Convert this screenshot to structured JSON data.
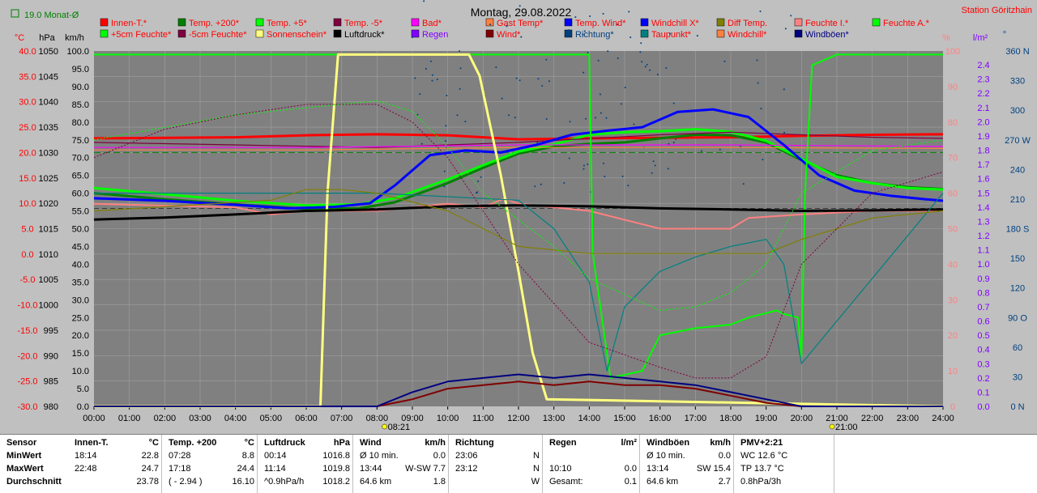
{
  "header": {
    "title": "Montag, 29.08.2022",
    "station": "Station Göritzhain",
    "month_avg": "19.0 Monat-Ø"
  },
  "colors": {
    "bg": "#808080",
    "innen": "#ff0000",
    "temp200": "#008000",
    "temp5": "#00ff00",
    "tempm5": "#800040",
    "bad": "#ff00ff",
    "gast": "#ff8040",
    "wind_temp": "#0000ff",
    "windchill_x": "#0000ff",
    "diff": "#808000",
    "feuchte_i": "#ff8080",
    "feuchte_a": "#00ff00",
    "sonne": "#ffff80",
    "luftdruck": "#000000",
    "regen": "#8000ff",
    "wind": "#800000",
    "richtung": "#004080",
    "taupunkt": "#008080",
    "windboeen": "#000080"
  },
  "legend": [
    [
      "Innen-T.*",
      "Temp. +200*",
      "Temp. +5*",
      "Temp. -5*",
      "Bad*",
      "Gast Temp*",
      "Temp. Wind*",
      "Windchill X*",
      "Diff Temp.",
      "Feuchte I.*",
      "Feuchte A.*"
    ],
    [
      "+5cm Feuchte*",
      "-5cm Feuchte*",
      "Sonnenschein*",
      "Luftdruck*",
      "Regen",
      "Wind*",
      "Richtung*",
      "Taupunkt*",
      "Windchill*",
      "Windböen*"
    ]
  ],
  "axis_titles": {
    "temp": "°C",
    "hpa": "hPa",
    "kmh": "km/h",
    "pct": "%",
    "lm2": "l/m²",
    "deg": "°"
  },
  "chart_data": {
    "type": "line",
    "title": "Montag, 29.08.2022",
    "x_ticks": [
      "00:00",
      "01:00",
      "02:00",
      "03:00",
      "04:00",
      "05:00",
      "06:00",
      "07:00",
      "08:00",
      "09:00",
      "10:00",
      "11:00",
      "12:00",
      "13:00",
      "14:00",
      "15:00",
      "16:00",
      "17:00",
      "18:00",
      "19:00",
      "20:00",
      "21:00",
      "22:00",
      "23:00",
      "24:00"
    ],
    "sunrise": "08:21",
    "sunset": "21:00",
    "temp_ticks": [
      "40.0",
      "35.0",
      "30.0",
      "25.0",
      "20.0",
      "15.0",
      "10.0",
      "5.0",
      "0.0",
      "-5.0",
      "-10.0",
      "-15.0",
      "-20.0",
      "-25.0",
      "-30.0"
    ],
    "hpa_ticks": [
      "1050",
      "1045",
      "1040",
      "1035",
      "1030",
      "1025",
      "1020",
      "1015",
      "1010",
      "1005",
      "1000",
      "995",
      "990",
      "985",
      "980"
    ],
    "kmh_ticks": [
      "100.0",
      "95.0",
      "90.0",
      "85.0",
      "80.0",
      "75.0",
      "70.0",
      "65.0",
      "60.0",
      "55.0",
      "50.0",
      "45.0",
      "40.0",
      "35.0",
      "30.0",
      "25.0",
      "20.0",
      "15.0",
      "10.0",
      "5.0",
      "0.0"
    ],
    "pct_ticks": [
      "100",
      "90",
      "80",
      "70",
      "60",
      "50",
      "40",
      "30",
      "20",
      "10",
      "0"
    ],
    "lm2_ticks": [
      "2.4",
      "2.3",
      "2.2",
      "2.1",
      "2.0",
      "1.9",
      "1.8",
      "1.7",
      "1.6",
      "1.5",
      "1.4",
      "1.3",
      "1.2",
      "1.1",
      "1.0",
      "0.9",
      "0.8",
      "0.7",
      "0.6",
      "0.5",
      "0.4",
      "0.3",
      "0.2",
      "0.1",
      "0.0"
    ],
    "deg_ticks": [
      "360 N",
      "330",
      "300",
      "270 W",
      "240",
      "210",
      "180 S",
      "150",
      "120",
      "90 O",
      "60",
      "30",
      "0 N"
    ],
    "ylim_temp": [
      -30,
      40
    ],
    "ylim_pct": [
      0,
      100
    ],
    "series": [
      {
        "name": "Innen-T.*",
        "key": "innen",
        "axis": "temp",
        "x": [
          0,
          4,
          6,
          8,
          10,
          12,
          14,
          16,
          18,
          20,
          22,
          24
        ],
        "y": [
          22.8,
          23.0,
          23.4,
          23.6,
          23.4,
          22.6,
          22.8,
          22.9,
          23.0,
          23.3,
          23.5,
          23.6
        ]
      },
      {
        "name": "Temp. +200*",
        "key": "temp200",
        "axis": "temp",
        "x": [
          0,
          2,
          4,
          6,
          7.5,
          8.5,
          10,
          11,
          12,
          13,
          14,
          15,
          16,
          17,
          18,
          19,
          20,
          21,
          22,
          23,
          24
        ],
        "y": [
          12.0,
          10.8,
          9.8,
          8.9,
          9.0,
          10.2,
          14.0,
          17.0,
          19.8,
          21.2,
          21.7,
          22.0,
          22.8,
          23.5,
          23.4,
          22.0,
          18.5,
          15.5,
          14.0,
          13.2,
          12.8
        ]
      },
      {
        "name": "Temp. +5*",
        "key": "temp5",
        "axis": "temp",
        "x": [
          0,
          2,
          4,
          6,
          7.5,
          8.5,
          10,
          11,
          12,
          13,
          14,
          15,
          16,
          17,
          18,
          19,
          20,
          21,
          22,
          23,
          24
        ],
        "y": [
          13.0,
          11.8,
          10.5,
          9.6,
          9.8,
          11.0,
          14.7,
          17.5,
          20.2,
          21.6,
          23.5,
          24.0,
          24.2,
          24.6,
          24.1,
          22.3,
          18.8,
          15.2,
          14.0,
          13.0,
          12.7
        ]
      },
      {
        "name": "Temp. -5*",
        "key": "tempm5",
        "axis": "temp",
        "x": [
          0,
          4,
          8,
          12,
          16,
          18,
          20,
          22,
          24
        ],
        "y": [
          22.0,
          21.5,
          21.0,
          22.0,
          23.5,
          24.0,
          23.5,
          23.0,
          22.8
        ]
      },
      {
        "name": "Bad*",
        "key": "bad",
        "axis": "temp",
        "x": [
          0,
          6,
          12,
          18,
          24
        ],
        "y": [
          21.0,
          21.0,
          21.5,
          21.5,
          21.2
        ]
      },
      {
        "name": "Gast Temp*",
        "key": "gast",
        "axis": "temp",
        "x": [
          0,
          6,
          12,
          18,
          24
        ],
        "y": [
          20.5,
          20.5,
          21.0,
          21.0,
          20.8
        ]
      },
      {
        "name": "Temp. Wind*",
        "key": "wind_temp",
        "axis": "temp",
        "x": [
          0,
          2,
          4,
          5.5,
          6.8,
          7.8,
          8.5,
          9.5,
          10.5,
          11.5,
          12.5,
          13.5,
          14.5,
          15.5,
          16.5,
          17.5,
          18.5,
          19.5,
          20.5,
          21.5,
          22.5,
          23.5,
          24
        ],
        "y": [
          11.0,
          10.5,
          9.7,
          9.0,
          9.3,
          10.0,
          13.5,
          19.5,
          20.4,
          20.0,
          21.5,
          23.5,
          24.3,
          25.0,
          28.0,
          28.5,
          27.0,
          21.5,
          15.5,
          12.5,
          11.5,
          10.8,
          10.5
        ]
      },
      {
        "name": "Feuchte I.*",
        "key": "feuchte_i",
        "axis": "pct",
        "x": [
          0,
          4,
          5,
          6,
          8,
          10,
          11,
          11.6,
          12,
          14,
          16,
          18,
          18.5,
          20,
          22,
          24
        ],
        "y": [
          57,
          56,
          54,
          55,
          55,
          57,
          56,
          58.5,
          57,
          55,
          50,
          50,
          53,
          54,
          55,
          55
        ]
      },
      {
        "name": "Feuchte A.*",
        "key": "feuchte_a",
        "axis": "pct",
        "x": [
          0,
          14.0,
          14.1,
          14.6,
          15.5,
          16,
          17,
          18,
          18.5,
          19.3,
          19.5,
          19.9,
          20.0,
          20.1,
          20.3,
          21,
          24
        ],
        "y": [
          99,
          99,
          43,
          8,
          10,
          20,
          22,
          23,
          25,
          27,
          26,
          25,
          14,
          60,
          96,
          99,
          99
        ]
      },
      {
        "name": "Sonnenschein*",
        "key": "sonne",
        "axis": "pct",
        "x": [
          0,
          6.4,
          6.6,
          6.9,
          10.6,
          10.9,
          11.5,
          12.0,
          12.4,
          12.8,
          24
        ],
        "y": [
          0,
          0,
          60,
          99,
          99,
          93,
          65,
          38,
          15,
          2,
          0
        ]
      },
      {
        "name": "Luftdruck*",
        "key": "luftdruck",
        "axis": "hpa",
        "x": [
          0,
          2,
          4,
          6,
          8,
          10,
          12,
          14,
          16,
          18,
          20,
          22,
          24
        ],
        "y": [
          1016.8,
          1017.2,
          1017.8,
          1018.5,
          1018.8,
          1019.4,
          1019.6,
          1019.4,
          1019.0,
          1018.8,
          1018.5,
          1018.6,
          1018.8
        ]
      },
      {
        "name": "Wind*",
        "key": "wind",
        "axis": "kmh",
        "x": [
          0,
          8,
          9,
          10,
          11,
          12,
          13,
          14,
          15,
          16,
          17,
          18,
          19,
          20,
          24
        ],
        "y": [
          0,
          0,
          2,
          5,
          6,
          7,
          6,
          7,
          6,
          6,
          5,
          3,
          1,
          0,
          0
        ]
      },
      {
        "name": "Windböen*",
        "key": "windboeen",
        "axis": "kmh",
        "x": [
          0,
          8,
          9,
          10,
          11,
          12,
          13,
          14,
          15,
          16,
          17,
          18,
          19,
          20,
          24
        ],
        "y": [
          0,
          0,
          4,
          7,
          8,
          9,
          8,
          9,
          8,
          7,
          6,
          4,
          2,
          0,
          0
        ]
      },
      {
        "name": "Taupunkt*",
        "key": "taupunkt",
        "axis": "pct",
        "x": [
          0,
          8,
          12,
          13,
          14,
          14.5,
          15,
          16,
          17,
          18,
          19,
          19.5,
          20,
          24
        ],
        "y": [
          60,
          60,
          58,
          50,
          35,
          10,
          28,
          38,
          42,
          45,
          47,
          40,
          12,
          60
        ]
      },
      {
        "name": "Diff Temp.",
        "key": "diff",
        "axis": "pct",
        "x": [
          0,
          5,
          6,
          7,
          8,
          10,
          12,
          14,
          16,
          18,
          19,
          20,
          22,
          24
        ],
        "y": [
          55,
          58,
          61,
          61,
          60,
          55,
          45,
          43,
          43,
          43,
          43,
          47,
          53,
          55
        ]
      },
      {
        "name": "+5cm Feuchte*",
        "key": "temp5",
        "axis": "pct",
        "x": [
          0,
          4,
          6,
          8,
          9,
          10,
          11,
          13,
          14,
          16,
          17,
          18,
          19,
          20,
          22,
          24
        ],
        "y": [
          75,
          82,
          84,
          86,
          83,
          73,
          60,
          45,
          36,
          27,
          28,
          32,
          40,
          60,
          72,
          75
        ]
      },
      {
        "name": "-5cm Feuchte*",
        "key": "tempm5",
        "axis": "pct",
        "x": [
          0,
          2,
          4,
          6,
          8,
          9,
          10,
          11,
          12,
          14,
          16,
          17,
          18,
          19,
          20,
          22,
          24
        ],
        "y": [
          70,
          78,
          82,
          85,
          85,
          80,
          70,
          55,
          40,
          18,
          11,
          8,
          8,
          14,
          40,
          60,
          66
        ]
      }
    ]
  },
  "table": {
    "row_labels": [
      "Sensor",
      "MinWert",
      "MaxWert",
      "Durchschnitt"
    ],
    "columns": [
      {
        "title": "Innen-T.",
        "unit": "°C",
        "min_t": "18:14",
        "min_v": "22.8",
        "max_t": "22:48",
        "max_v": "24.7",
        "avg_t": "",
        "avg_v": "23.78"
      },
      {
        "title": "Temp. +200",
        "unit": "°C",
        "min_t": "07:28",
        "min_v": "8.8",
        "max_t": "17:18",
        "max_v": "24.4",
        "avg_t": "( - 2.94 )",
        "avg_v": "16.10"
      },
      {
        "title": "Luftdruck",
        "unit": "hPa",
        "min_t": "00:14",
        "min_v": "1016.8",
        "max_t": "11:14",
        "max_v": "1019.8",
        "avg_t": "^0.9hPa/h",
        "avg_v": "1018.2"
      },
      {
        "title": "Wind",
        "unit": "km/h",
        "min_t": "Ø 10 min.",
        "min_v": "0.0",
        "max_t": "13:44",
        "max_v": "W-SW 7.7",
        "avg_t": "64.6 km",
        "avg_v": "1.8"
      },
      {
        "title": "Richtung",
        "unit": "",
        "min_t": "23:06",
        "min_v": "N",
        "max_t": "23:12",
        "max_v": "N",
        "avg_t": "",
        "avg_v": "W"
      },
      {
        "title": "Regen",
        "unit": "l/m²",
        "min_t": "",
        "min_v": "",
        "max_t": "10:10",
        "max_v": "0.0",
        "avg_t": "Gesamt:",
        "avg_v": "0.1"
      },
      {
        "title": "Windböen",
        "unit": "km/h",
        "min_t": "Ø 10 min.",
        "min_v": "0.0",
        "max_t": "13:14",
        "max_v": "SW 15.4",
        "avg_t": "64.6 km",
        "avg_v": "2.7"
      },
      {
        "title": "PMV+2:21",
        "unit": "",
        "min_t": "WC 12.6 °C",
        "min_v": "",
        "max_t": "TP 13.7 °C",
        "max_v": "",
        "avg_t": "0.8hPa/3h",
        "avg_v": ""
      }
    ]
  }
}
